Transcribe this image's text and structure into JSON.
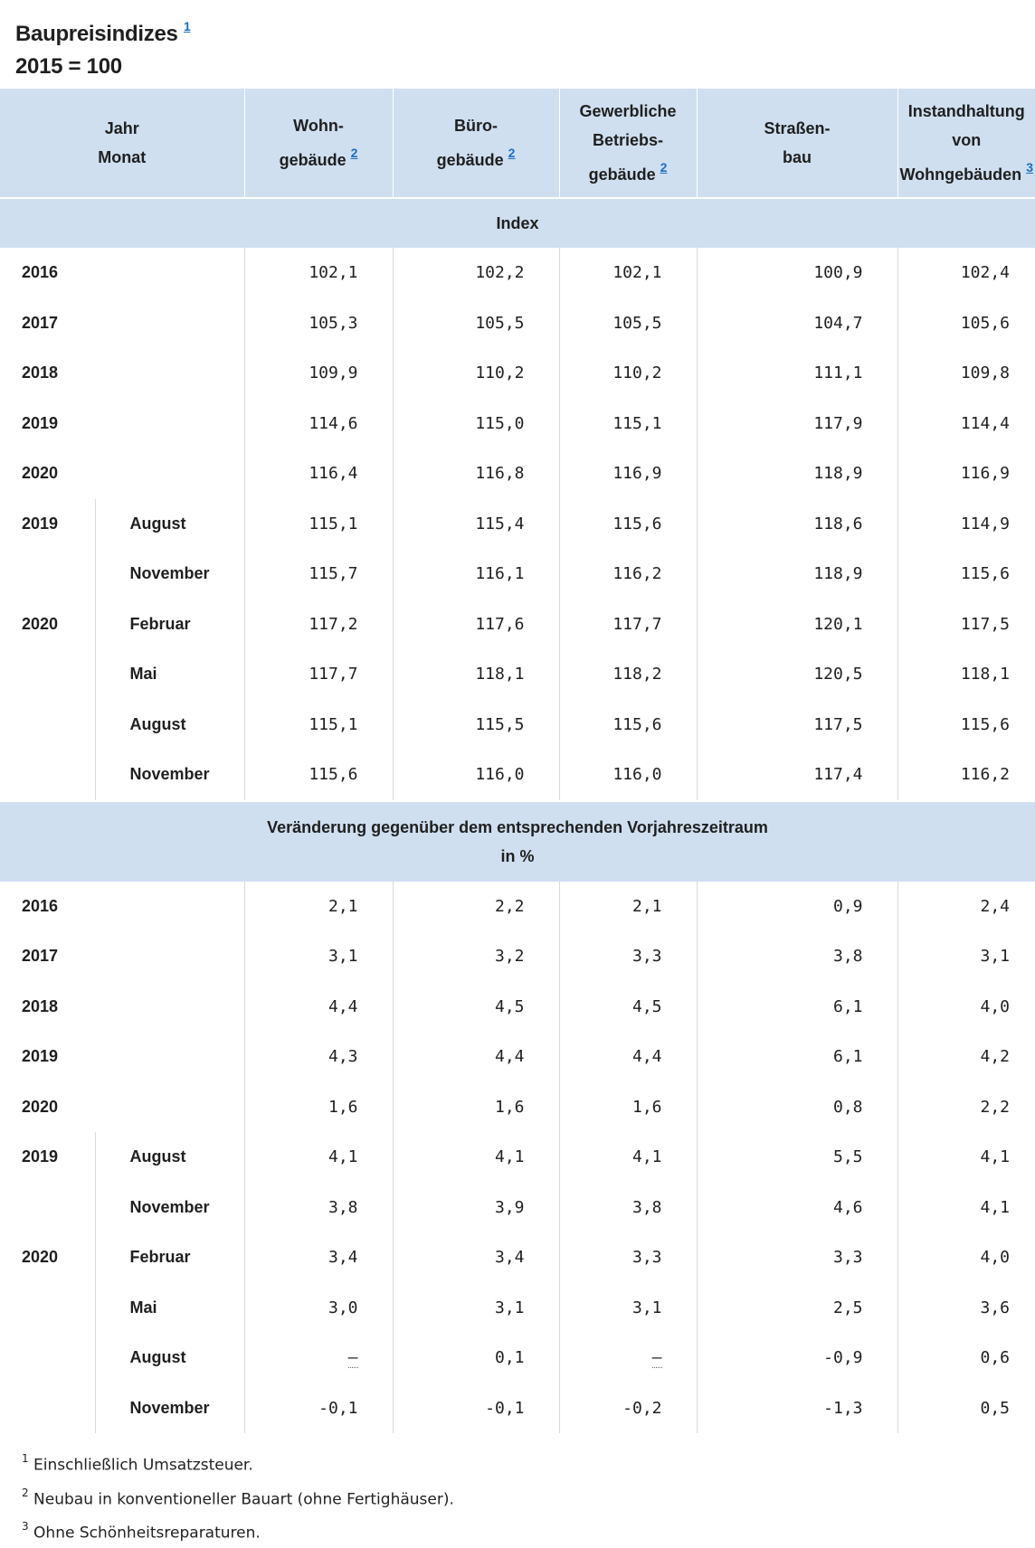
{
  "title": {
    "text": "Baupreisindizes",
    "note_ref": "1",
    "subtitle": "2015 = 100"
  },
  "header": {
    "col0": [
      "Jahr",
      "Monat"
    ],
    "col1": {
      "lines": [
        "Wohn-",
        "gebäude"
      ],
      "ref": "2"
    },
    "col2": {
      "lines": [
        "Büro-",
        "gebäude"
      ],
      "ref": "2"
    },
    "col3": {
      "lines": [
        "Gewerbliche",
        "Betriebs-",
        "gebäude"
      ],
      "ref": "2"
    },
    "col4": {
      "lines": [
        "Straßen-",
        "bau"
      ],
      "ref": ""
    },
    "col5": {
      "lines": [
        "Instandhaltung",
        "von",
        "Wohngebäuden"
      ],
      "ref": "3"
    }
  },
  "sections": [
    {
      "label": [
        "Index"
      ],
      "rows": [
        {
          "year": "2016",
          "month": "",
          "values": [
            "102,1",
            "102,2",
            "102,1",
            "100,9",
            "102,4"
          ]
        },
        {
          "year": "2017",
          "month": "",
          "values": [
            "105,3",
            "105,5",
            "105,5",
            "104,7",
            "105,6"
          ]
        },
        {
          "year": "2018",
          "month": "",
          "values": [
            "109,9",
            "110,2",
            "110,2",
            "111,1",
            "109,8"
          ]
        },
        {
          "year": "2019",
          "month": "",
          "values": [
            "114,6",
            "115,0",
            "115,1",
            "117,9",
            "114,4"
          ]
        },
        {
          "year": "2020",
          "month": "",
          "values": [
            "116,4",
            "116,8",
            "116,9",
            "118,9",
            "116,9"
          ]
        },
        {
          "year": "2019",
          "month": "August",
          "values": [
            "115,1",
            "115,4",
            "115,6",
            "118,6",
            "114,9"
          ]
        },
        {
          "year": "",
          "month": "November",
          "values": [
            "115,7",
            "116,1",
            "116,2",
            "118,9",
            "115,6"
          ]
        },
        {
          "year": "2020",
          "month": "Februar",
          "values": [
            "117,2",
            "117,6",
            "117,7",
            "120,1",
            "117,5"
          ]
        },
        {
          "year": "",
          "month": "Mai",
          "values": [
            "117,7",
            "118,1",
            "118,2",
            "120,5",
            "118,1"
          ]
        },
        {
          "year": "",
          "month": "August",
          "values": [
            "115,1",
            "115,5",
            "115,6",
            "117,5",
            "115,6"
          ]
        },
        {
          "year": "",
          "month": "November",
          "values": [
            "115,6",
            "116,0",
            "116,0",
            "117,4",
            "116,2"
          ]
        }
      ]
    },
    {
      "label": [
        "Veränderung gegenüber dem entsprechenden Vorjahreszeitraum",
        "in %"
      ],
      "rows": [
        {
          "year": "2016",
          "month": "",
          "values": [
            "2,1",
            "2,2",
            "2,1",
            "0,9",
            "2,4"
          ]
        },
        {
          "year": "2017",
          "month": "",
          "values": [
            "3,1",
            "3,2",
            "3,3",
            "3,8",
            "3,1"
          ]
        },
        {
          "year": "2018",
          "month": "",
          "values": [
            "4,4",
            "4,5",
            "4,5",
            "6,1",
            "4,0"
          ]
        },
        {
          "year": "2019",
          "month": "",
          "values": [
            "4,3",
            "4,4",
            "4,4",
            "6,1",
            "4,2"
          ]
        },
        {
          "year": "2020",
          "month": "",
          "values": [
            "1,6",
            "1,6",
            "1,6",
            "0,8",
            "2,2"
          ]
        },
        {
          "year": "2019",
          "month": "August",
          "values": [
            "4,1",
            "4,1",
            "4,1",
            "5,5",
            "4,1"
          ]
        },
        {
          "year": "",
          "month": "November",
          "values": [
            "3,8",
            "3,9",
            "3,8",
            "4,6",
            "4,1"
          ]
        },
        {
          "year": "2020",
          "month": "Februar",
          "values": [
            "3,4",
            "3,4",
            "3,3",
            "3,3",
            "4,0"
          ]
        },
        {
          "year": "",
          "month": "Mai",
          "values": [
            "3,0",
            "3,1",
            "3,1",
            "2,5",
            "3,6"
          ]
        },
        {
          "year": "",
          "month": "August",
          "values": [
            "–",
            "0,1",
            "–",
            "-0,9",
            "0,6"
          ]
        },
        {
          "year": "",
          "month": "November",
          "values": [
            "-0,1",
            "-0,1",
            "-0,2",
            "-1,3",
            "0,5"
          ]
        }
      ]
    }
  ],
  "footnotes": [
    {
      "ref": "1",
      "text": "Einschließlich Umsatzsteuer."
    },
    {
      "ref": "2",
      "text": "Neubau in konventioneller Bauart (ohne Fertighäuser)."
    },
    {
      "ref": "3",
      "text": "Ohne Schönheitsreparaturen."
    }
  ]
}
